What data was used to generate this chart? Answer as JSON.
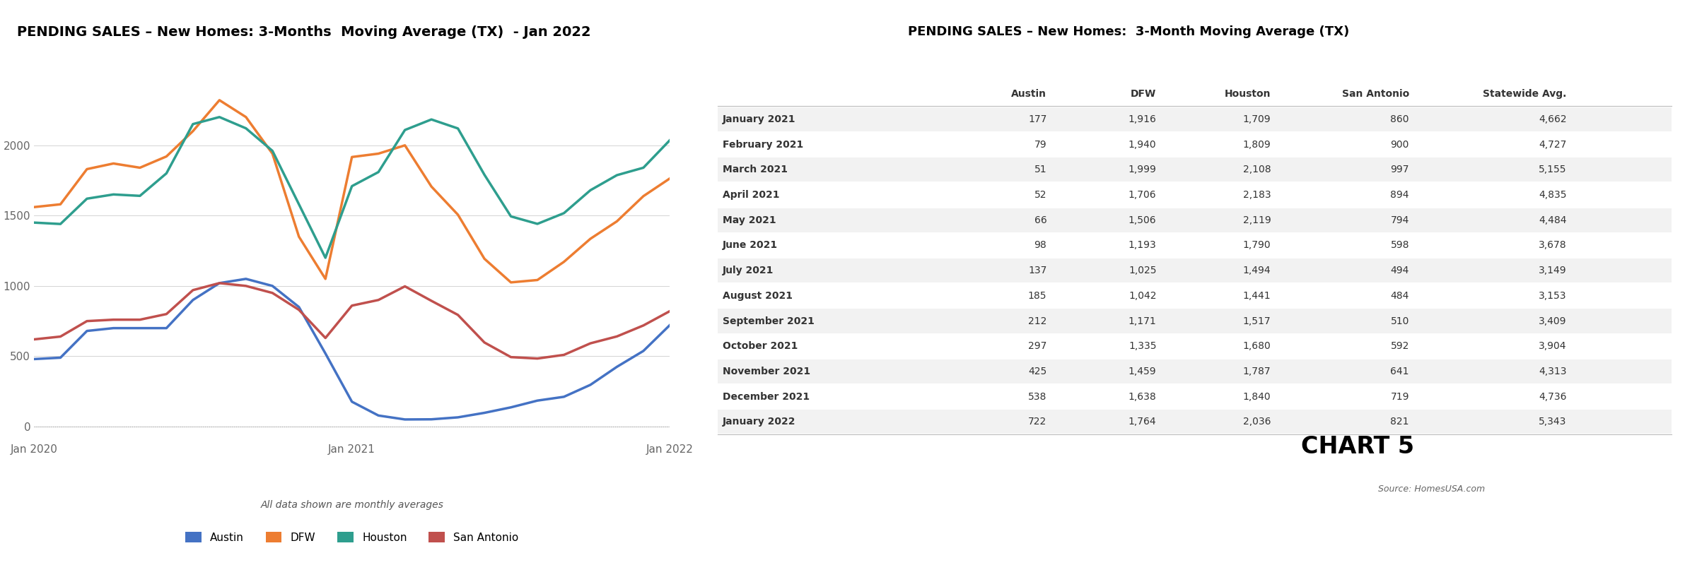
{
  "chart_title": "PENDING SALES – New Homes: 3-Months  Moving Average (TX)  - Jan 2022",
  "table_title": "PENDING SALES – New Homes:  3-Month Moving Average (TX)",
  "subtitle": "All data shown are monthly averages",
  "source": "Source: HomesUSA.com",
  "chart5_label": "CHART 5",
  "x_labels": [
    "Jan 2020",
    "Jan 2021",
    "Jan 2022"
  ],
  "x_positions": [
    0,
    12,
    24
  ],
  "yticks": [
    0,
    500,
    1000,
    1500,
    2000
  ],
  "series": {
    "Austin": {
      "color": "#4472C4",
      "values": [
        480,
        490,
        680,
        700,
        700,
        700,
        900,
        1020,
        1050,
        1000,
        850,
        520,
        177,
        79,
        51,
        52,
        66,
        98,
        137,
        185,
        212,
        297,
        425,
        538,
        722
      ]
    },
    "DFW": {
      "color": "#ED7D31",
      "values": [
        1560,
        1580,
        1830,
        1870,
        1840,
        1920,
        2100,
        2320,
        2200,
        1940,
        1350,
        1050,
        1916,
        1940,
        1999,
        1706,
        1506,
        1193,
        1025,
        1042,
        1171,
        1335,
        1459,
        1638,
        1764
      ]
    },
    "Houston": {
      "color": "#2E9E8E",
      "values": [
        1450,
        1440,
        1620,
        1650,
        1640,
        1800,
        2150,
        2200,
        2120,
        1960,
        1580,
        1200,
        1709,
        1809,
        2108,
        2183,
        2119,
        1790,
        1494,
        1441,
        1517,
        1680,
        1787,
        1840,
        2036
      ]
    },
    "San Antonio": {
      "color": "#C0504D",
      "values": [
        620,
        640,
        750,
        760,
        760,
        800,
        970,
        1020,
        1000,
        950,
        830,
        630,
        860,
        900,
        997,
        894,
        794,
        598,
        494,
        484,
        510,
        592,
        641,
        719,
        821
      ]
    }
  },
  "table_headers": [
    "",
    "Austin",
    "DFW",
    "Houston",
    "San Antonio",
    "Statewide Avg."
  ],
  "table_rows": [
    [
      "January 2021",
      177,
      1916,
      1709,
      860,
      4662
    ],
    [
      "February 2021",
      79,
      1940,
      1809,
      900,
      4727
    ],
    [
      "March 2021",
      51,
      1999,
      2108,
      997,
      5155
    ],
    [
      "April 2021",
      52,
      1706,
      2183,
      894,
      4835
    ],
    [
      "May 2021",
      66,
      1506,
      2119,
      794,
      4484
    ],
    [
      "June 2021",
      98,
      1193,
      1790,
      598,
      3678
    ],
    [
      "July 2021",
      137,
      1025,
      1494,
      494,
      3149
    ],
    [
      "August 2021",
      185,
      1042,
      1441,
      484,
      3153
    ],
    [
      "September 2021",
      212,
      1171,
      1517,
      510,
      3409
    ],
    [
      "October 2021",
      297,
      1335,
      1680,
      592,
      3904
    ],
    [
      "November 2021",
      425,
      1459,
      1787,
      641,
      4313
    ],
    [
      "December 2021",
      538,
      1638,
      1840,
      719,
      4736
    ],
    [
      "January 2022",
      722,
      1764,
      2036,
      821,
      5343
    ]
  ],
  "colors": {
    "background": "#FFFFFF",
    "grid": "#CCCCCC",
    "zero_line": "#AAAAAA",
    "table_alt_bg": "#F2F2F2",
    "table_text": "#333333",
    "title_color": "#000000"
  },
  "legend_items": [
    "Austin",
    "DFW",
    "Houston",
    "San Antonio"
  ]
}
